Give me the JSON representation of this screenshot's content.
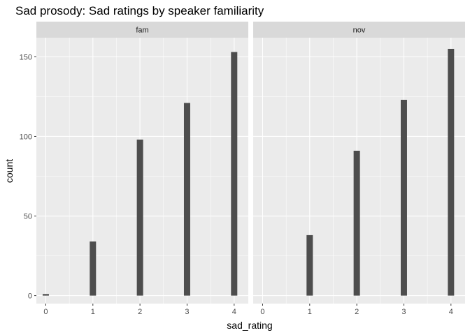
{
  "chart_data": {
    "type": "bar",
    "title": "Sad prosody: Sad ratings by speaker familiarity",
    "xlabel": "sad_rating",
    "ylabel": "count",
    "x_ticks": [
      0,
      1,
      2,
      3,
      4
    ],
    "y_ticks": [
      0,
      50,
      100,
      150
    ],
    "xlim": [
      -0.2,
      4.3
    ],
    "ylim": [
      -5,
      162
    ],
    "grid": true,
    "facets": [
      {
        "name": "fam",
        "x": [
          0,
          1,
          2,
          3,
          4
        ],
        "values": [
          1,
          34,
          98,
          121,
          153
        ]
      },
      {
        "name": "nov",
        "x": [
          0,
          1,
          2,
          3,
          4
        ],
        "values": [
          0,
          38,
          91,
          123,
          155
        ]
      }
    ],
    "colors": {
      "bar": "#4d4d4d",
      "panel": "#ebebeb",
      "strip": "#d9d9d9",
      "grid": "#ffffff"
    }
  }
}
